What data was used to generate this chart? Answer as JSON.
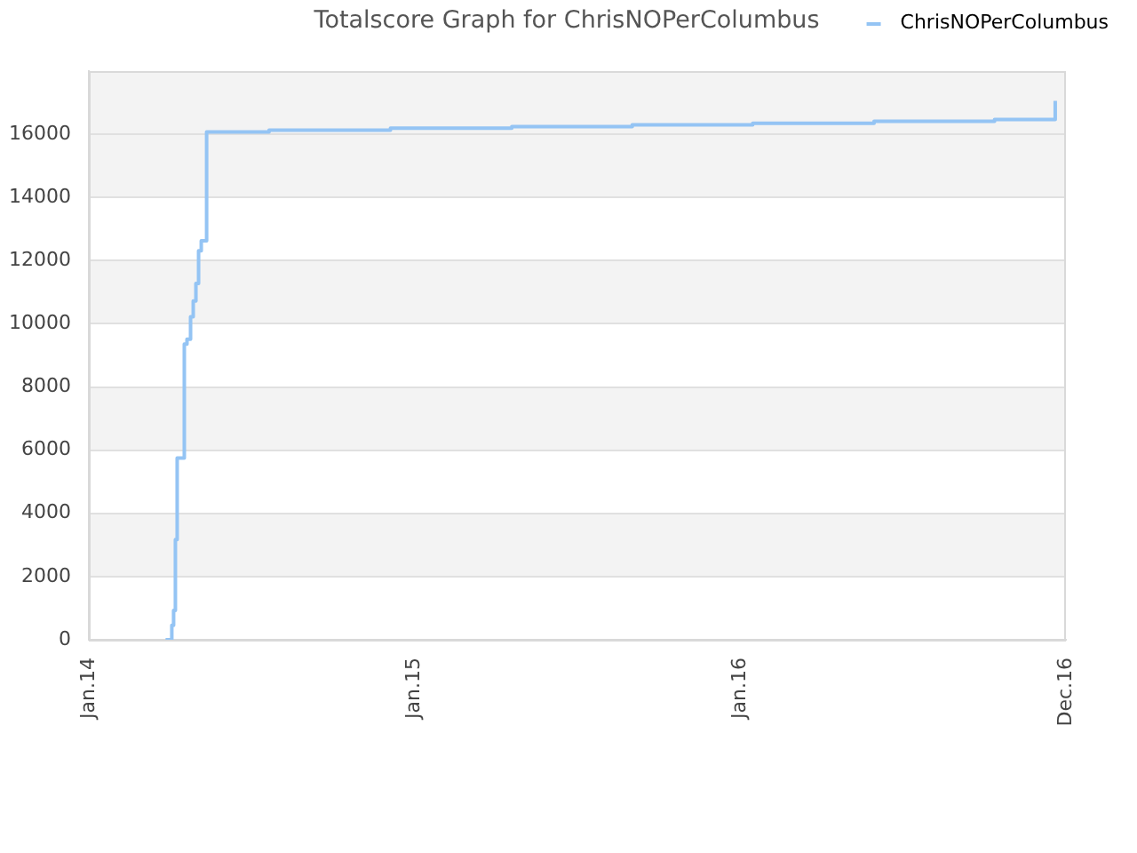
{
  "chart_data": {
    "type": "step",
    "title": "Totalscore Graph for ChrisNOPerColumbus",
    "x": [
      "2014-03-28",
      "2014-04-04",
      "2014-04-06",
      "2014-04-08",
      "2014-04-10",
      "2014-04-18",
      "2014-04-21",
      "2014-04-25",
      "2014-04-28",
      "2014-05-01",
      "2014-05-04",
      "2014-05-07",
      "2014-05-13",
      "2014-07-22",
      "2014-12-05",
      "2015-04-20",
      "2015-09-02",
      "2016-01-15",
      "2016-05-30",
      "2016-10-12",
      "2016-12-19"
    ],
    "series": [
      {
        "name": "ChrisNOPerColumbus",
        "color": "#94c4f4",
        "values": [
          0,
          460,
          930,
          3170,
          5750,
          9360,
          9510,
          10220,
          10720,
          11280,
          12310,
          12630,
          16070,
          16130,
          16190,
          16240,
          16300,
          16350,
          16410,
          16470,
          17060
        ]
      }
    ],
    "xlim": [
      "2014-01-01",
      "2016-12-31"
    ],
    "xticks": [
      {
        "value": "2014-01-01",
        "label": "Jan.14"
      },
      {
        "value": "2015-01-01",
        "label": "Jan.15"
      },
      {
        "value": "2016-01-01",
        "label": "Jan.16"
      },
      {
        "value": "2016-12-31",
        "label": "Dec.16"
      }
    ],
    "ylim": [
      0,
      18000
    ],
    "yticks": [
      0,
      2000,
      4000,
      6000,
      8000,
      10000,
      12000,
      14000,
      16000
    ],
    "grid": "y",
    "legend": "top right",
    "marker": "none"
  }
}
